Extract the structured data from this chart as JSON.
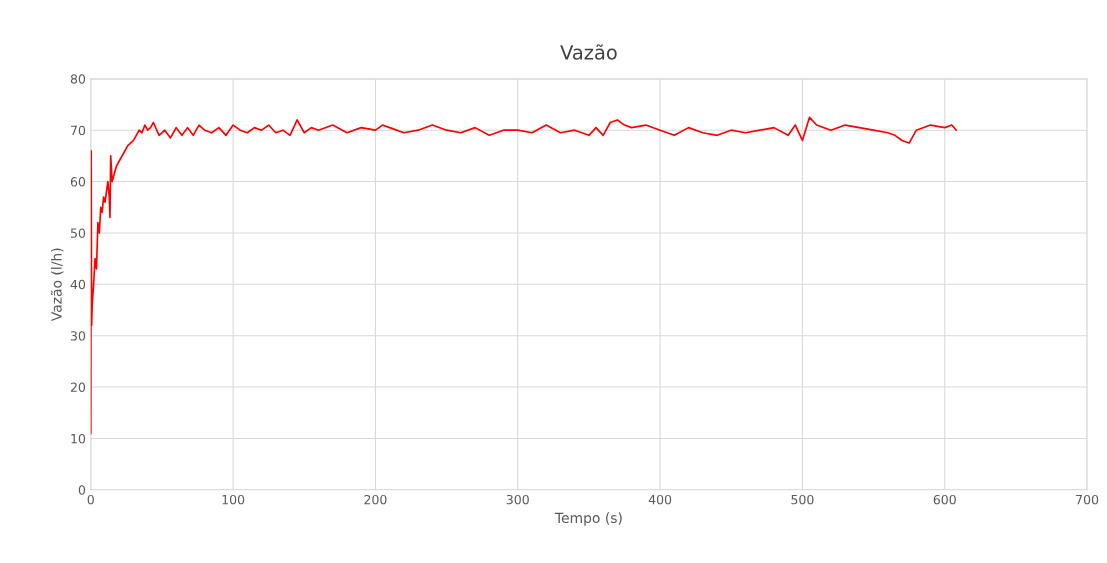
{
  "chart_data": {
    "type": "line",
    "title": "Vazão",
    "xlabel": "Tempo (s)",
    "ylabel": "Vazão (l/h)",
    "xlim": [
      0,
      700
    ],
    "ylim": [
      0,
      80
    ],
    "xticks": [
      0,
      100,
      200,
      300,
      400,
      500,
      600,
      700
    ],
    "yticks": [
      0,
      10,
      20,
      30,
      40,
      50,
      60,
      70,
      80
    ],
    "grid": true,
    "legend": false,
    "marker": "none",
    "line_style": "solid",
    "series": [
      {
        "color": "#ff0000",
        "x": [
          0,
          0.3,
          0.6,
          1,
          2,
          3,
          4,
          5,
          6,
          7,
          8,
          9,
          10,
          11,
          12,
          13,
          13.5,
          14,
          15,
          16,
          18,
          20,
          22,
          24,
          26,
          28,
          30,
          32,
          34,
          36,
          38,
          40,
          42,
          44,
          48,
          52,
          56,
          60,
          64,
          68,
          72,
          76,
          80,
          85,
          90,
          95,
          100,
          105,
          110,
          115,
          120,
          125,
          130,
          135,
          140,
          145,
          150,
          155,
          160,
          170,
          180,
          190,
          200,
          205,
          210,
          220,
          230,
          240,
          250,
          260,
          270,
          280,
          290,
          300,
          310,
          320,
          330,
          340,
          350,
          355,
          360,
          365,
          370,
          375,
          380,
          390,
          400,
          410,
          420,
          430,
          440,
          450,
          460,
          470,
          480,
          490,
          495,
          500,
          505,
          510,
          520,
          530,
          540,
          550,
          560,
          565,
          570,
          575,
          580,
          590,
          600,
          605,
          608
        ],
        "values": [
          11,
          66,
          32,
          36,
          40,
          45,
          43,
          52,
          50,
          55,
          54,
          57,
          56,
          58,
          60,
          57,
          53,
          65,
          60,
          61,
          63,
          64,
          65,
          66,
          67,
          67.5,
          68,
          69,
          70,
          69.5,
          71,
          70,
          70.5,
          71.5,
          69,
          70,
          68.5,
          70.5,
          69,
          70.5,
          69,
          71,
          70,
          69.5,
          70.5,
          69,
          71,
          70,
          69.5,
          70.5,
          70,
          71,
          69.5,
          70,
          69,
          72,
          69.5,
          70.5,
          70,
          71,
          69.5,
          70.5,
          70,
          71,
          70.5,
          69.5,
          70,
          71,
          70,
          69.5,
          70.5,
          69,
          70,
          70,
          69.5,
          71,
          69.5,
          70,
          69,
          70.5,
          69,
          71.5,
          72,
          71,
          70.5,
          71,
          70,
          69,
          70.5,
          69.5,
          69,
          70,
          69.5,
          70,
          70.5,
          69,
          71,
          68,
          72.5,
          71,
          70,
          71,
          70.5,
          70,
          69.5,
          69,
          68,
          67.5,
          70,
          71,
          70.5,
          71,
          70
        ]
      }
    ]
  }
}
